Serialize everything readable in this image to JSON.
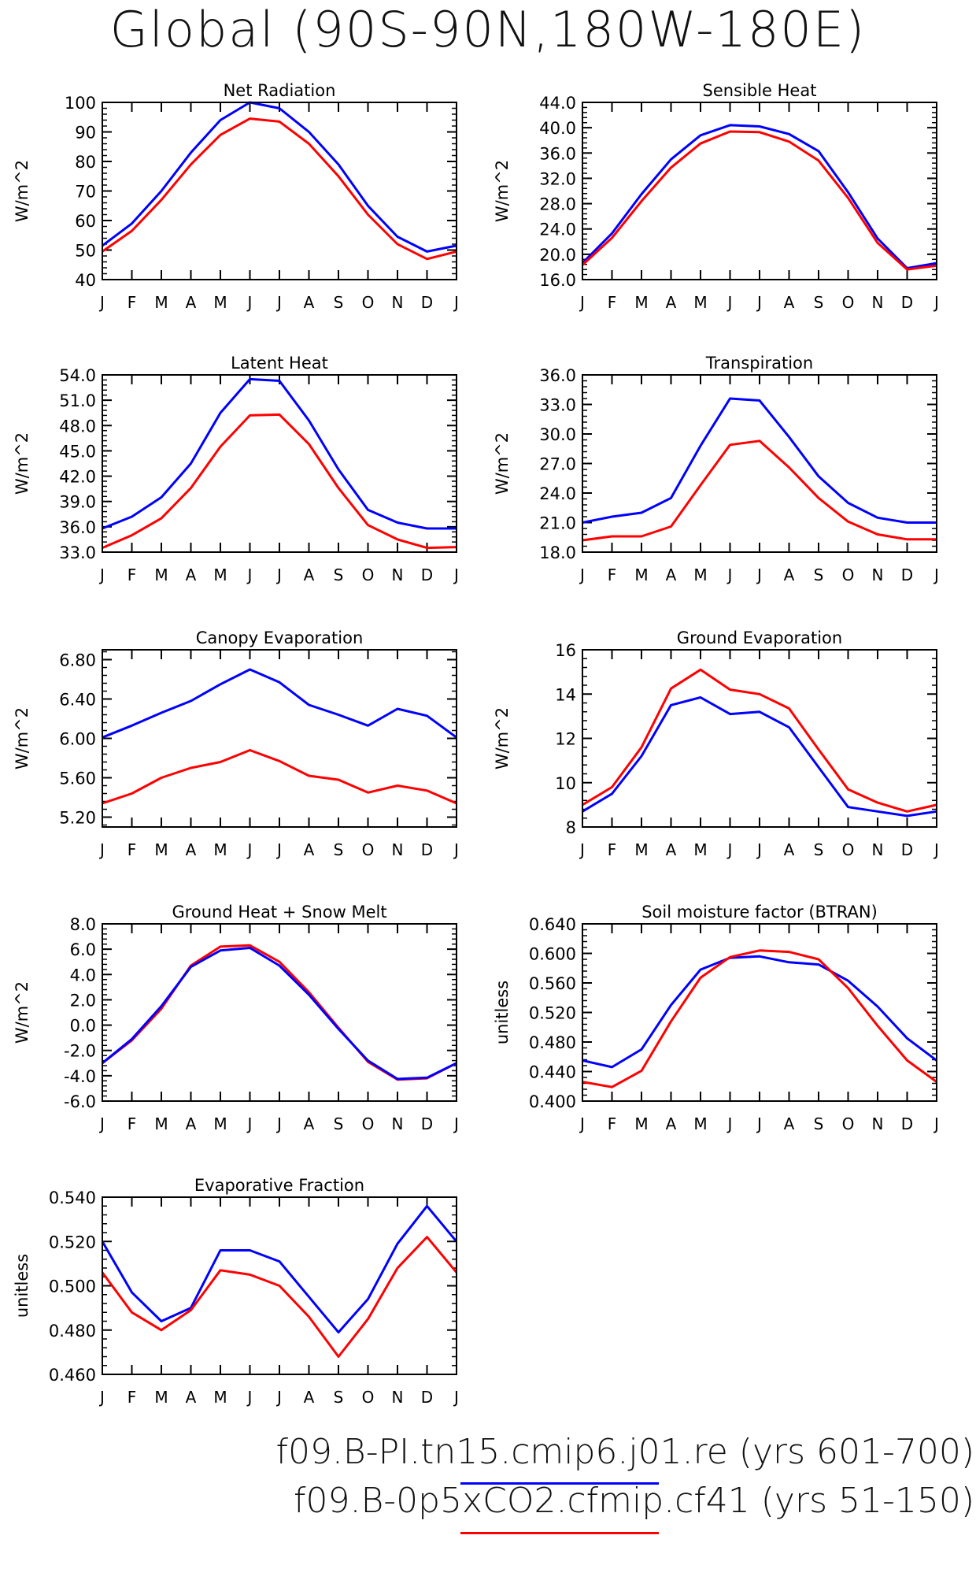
{
  "title": "Global (90S-90N,180W-180E)",
  "legend": [
    {
      "label": "f09.B-PI.tn15.cmip6.j01.re (yrs 601-700)",
      "color": "#0000ff"
    },
    {
      "label": "f09.B-0p5xCO2.cfmip.cf41 (yrs 51-150)",
      "color": "#ff0000"
    }
  ],
  "chart_data": [
    {
      "type": "line",
      "title": "Net Radiation",
      "ylabel": "W/m^2",
      "categories": [
        "J",
        "F",
        "M",
        "A",
        "M",
        "J",
        "J",
        "A",
        "S",
        "O",
        "N",
        "D",
        "J"
      ],
      "ylim": [
        40,
        100
      ],
      "yticks": [
        40,
        50,
        60,
        70,
        80,
        90,
        100
      ],
      "ytick_labels": [
        "40",
        "50",
        "60",
        "70",
        "80",
        "90",
        "100"
      ],
      "series": [
        {
          "color": "#0000ff",
          "values": [
            51.5,
            59,
            70,
            83,
            94,
            100,
            98,
            90,
            79,
            65,
            54.5,
            49.5,
            51.5
          ]
        },
        {
          "color": "#ff0000",
          "values": [
            49.5,
            56.5,
            67,
            79,
            89,
            94.5,
            93.5,
            86,
            75,
            62,
            52,
            47,
            49.5
          ]
        }
      ]
    },
    {
      "type": "line",
      "title": "Sensible Heat",
      "ylabel": "W/m^2",
      "categories": [
        "J",
        "F",
        "M",
        "A",
        "M",
        "J",
        "J",
        "A",
        "S",
        "O",
        "N",
        "D",
        "J"
      ],
      "ylim": [
        16,
        44
      ],
      "yticks": [
        16,
        20,
        24,
        28,
        32,
        36,
        40,
        44
      ],
      "ytick_labels": [
        "16.0",
        "20.0",
        "24.0",
        "28.0",
        "32.0",
        "36.0",
        "40.0",
        "44.0"
      ],
      "series": [
        {
          "color": "#0000ff",
          "values": [
            18.6,
            23.3,
            29.5,
            35.0,
            38.8,
            40.4,
            40.2,
            39.0,
            36.3,
            29.8,
            22.5,
            17.8,
            18.6
          ]
        },
        {
          "color": "#ff0000",
          "values": [
            18.3,
            22.6,
            28.4,
            33.7,
            37.5,
            39.4,
            39.3,
            37.8,
            34.8,
            28.9,
            21.8,
            17.6,
            18.2
          ]
        }
      ]
    },
    {
      "type": "line",
      "title": "Latent Heat",
      "ylabel": "W/m^2",
      "categories": [
        "J",
        "F",
        "M",
        "A",
        "M",
        "J",
        "J",
        "A",
        "S",
        "O",
        "N",
        "D",
        "J"
      ],
      "ylim": [
        33,
        54
      ],
      "yticks": [
        33,
        36,
        39,
        42,
        45,
        48,
        51,
        54
      ],
      "ytick_labels": [
        "33.0",
        "36.0",
        "39.0",
        "42.0",
        "45.0",
        "48.0",
        "51.0",
        "54.0"
      ],
      "series": [
        {
          "color": "#0000ff",
          "values": [
            35.8,
            37.2,
            39.5,
            43.5,
            49.5,
            53.5,
            53.3,
            48.6,
            42.8,
            38.0,
            36.5,
            35.8,
            35.8
          ]
        },
        {
          "color": "#ff0000",
          "values": [
            33.5,
            35.0,
            37.0,
            40.6,
            45.5,
            49.2,
            49.3,
            45.8,
            40.6,
            36.2,
            34.5,
            33.5,
            33.6
          ]
        }
      ]
    },
    {
      "type": "line",
      "title": "Transpiration",
      "ylabel": "W/m^2",
      "categories": [
        "J",
        "F",
        "M",
        "A",
        "M",
        "J",
        "J",
        "A",
        "S",
        "O",
        "N",
        "D",
        "J"
      ],
      "ylim": [
        18,
        36
      ],
      "yticks": [
        18,
        21,
        24,
        27,
        30,
        33,
        36
      ],
      "ytick_labels": [
        "18.0",
        "21.0",
        "24.0",
        "27.0",
        "30.0",
        "33.0",
        "36.0"
      ],
      "series": [
        {
          "color": "#0000ff",
          "values": [
            21.0,
            21.6,
            22.0,
            23.5,
            28.8,
            33.6,
            33.4,
            29.7,
            25.7,
            23.0,
            21.5,
            21.0,
            21.0
          ]
        },
        {
          "color": "#ff0000",
          "values": [
            19.2,
            19.6,
            19.6,
            20.6,
            24.8,
            28.9,
            29.3,
            26.6,
            23.5,
            21.1,
            19.8,
            19.3,
            19.3
          ]
        }
      ]
    },
    {
      "type": "line",
      "title": "Canopy Evaporation",
      "ylabel": "W/m^2",
      "categories": [
        "J",
        "F",
        "M",
        "A",
        "M",
        "J",
        "J",
        "A",
        "S",
        "O",
        "N",
        "D",
        "J"
      ],
      "ylim": [
        5.1,
        6.9
      ],
      "yticks": [
        5.2,
        5.6,
        6.0,
        6.4,
        6.8
      ],
      "ytick_labels": [
        "5.20",
        "5.60",
        "6.00",
        "6.40",
        "6.80"
      ],
      "series": [
        {
          "color": "#0000ff",
          "values": [
            6.01,
            6.13,
            6.26,
            6.38,
            6.55,
            6.7,
            6.57,
            6.34,
            6.24,
            6.13,
            6.3,
            6.23,
            6.01
          ]
        },
        {
          "color": "#ff0000",
          "values": [
            5.34,
            5.44,
            5.6,
            5.7,
            5.76,
            5.88,
            5.77,
            5.62,
            5.58,
            5.45,
            5.52,
            5.47,
            5.34
          ]
        }
      ]
    },
    {
      "type": "line",
      "title": "Ground Evaporation",
      "ylabel": "W/m^2",
      "categories": [
        "J",
        "F",
        "M",
        "A",
        "M",
        "J",
        "J",
        "A",
        "S",
        "O",
        "N",
        "D",
        "J"
      ],
      "ylim": [
        8,
        16
      ],
      "yticks": [
        8,
        10,
        12,
        14,
        16
      ],
      "ytick_labels": [
        "8",
        "10",
        "12",
        "14",
        "16"
      ],
      "series": [
        {
          "color": "#0000ff",
          "values": [
            8.7,
            9.5,
            11.2,
            13.5,
            13.85,
            13.1,
            13.2,
            12.5,
            10.7,
            8.9,
            8.7,
            8.5,
            8.7
          ]
        },
        {
          "color": "#ff0000",
          "values": [
            9.0,
            9.8,
            11.6,
            14.25,
            15.1,
            14.2,
            14.0,
            13.35,
            11.5,
            9.7,
            9.1,
            8.7,
            9.0
          ]
        }
      ]
    },
    {
      "type": "line",
      "title": "Ground Heat + Snow Melt",
      "ylabel": "W/m^2",
      "categories": [
        "J",
        "F",
        "M",
        "A",
        "M",
        "J",
        "J",
        "A",
        "S",
        "O",
        "N",
        "D",
        "J"
      ],
      "ylim": [
        -6,
        8
      ],
      "yticks": [
        -6,
        -4,
        -2,
        0,
        2,
        4,
        6,
        8
      ],
      "ytick_labels": [
        "-6.0",
        "-4.0",
        "-2.0",
        "0.0",
        "2.0",
        "4.0",
        "6.0",
        "8.0"
      ],
      "series": [
        {
          "color": "#ff0000",
          "values": [
            -3.0,
            -1.2,
            1.3,
            4.7,
            6.2,
            6.3,
            5.0,
            2.6,
            -0.2,
            -2.9,
            -4.3,
            -4.2,
            -3.0
          ]
        },
        {
          "color": "#0000ff",
          "values": [
            -3.0,
            -1.1,
            1.5,
            4.6,
            5.9,
            6.1,
            4.7,
            2.4,
            -0.3,
            -2.8,
            -4.25,
            -4.15,
            -3.0
          ]
        }
      ]
    },
    {
      "type": "line",
      "title": "Soil moisture factor (BTRAN)",
      "ylabel": "unitless",
      "categories": [
        "J",
        "F",
        "M",
        "A",
        "M",
        "J",
        "J",
        "A",
        "S",
        "O",
        "N",
        "D",
        "J"
      ],
      "ylim": [
        0.4,
        0.64
      ],
      "yticks": [
        0.4,
        0.44,
        0.48,
        0.52,
        0.56,
        0.6,
        0.64
      ],
      "ytick_labels": [
        "0.400",
        "0.440",
        "0.480",
        "0.520",
        "0.560",
        "0.600",
        "0.640"
      ],
      "series": [
        {
          "color": "#0000ff",
          "values": [
            0.455,
            0.446,
            0.47,
            0.53,
            0.578,
            0.594,
            0.596,
            0.588,
            0.585,
            0.563,
            0.528,
            0.485,
            0.455
          ]
        },
        {
          "color": "#ff0000",
          "values": [
            0.426,
            0.419,
            0.441,
            0.508,
            0.567,
            0.595,
            0.604,
            0.602,
            0.592,
            0.553,
            0.502,
            0.455,
            0.426
          ]
        }
      ]
    },
    {
      "type": "line",
      "title": "Evaporative Fraction",
      "ylabel": "unitless",
      "categories": [
        "J",
        "F",
        "M",
        "A",
        "M",
        "J",
        "J",
        "A",
        "S",
        "O",
        "N",
        "D",
        "J"
      ],
      "ylim": [
        0.46,
        0.54
      ],
      "yticks": [
        0.46,
        0.48,
        0.5,
        0.52,
        0.54
      ],
      "ytick_labels": [
        "0.460",
        "0.480",
        "0.500",
        "0.520",
        "0.540"
      ],
      "series": [
        {
          "color": "#0000ff",
          "values": [
            0.52,
            0.497,
            0.484,
            0.49,
            0.516,
            0.516,
            0.511,
            0.495,
            0.479,
            0.494,
            0.519,
            0.536,
            0.52
          ]
        },
        {
          "color": "#ff0000",
          "values": [
            0.506,
            0.488,
            0.48,
            0.489,
            0.507,
            0.505,
            0.5,
            0.486,
            0.468,
            0.485,
            0.508,
            0.522,
            0.506
          ]
        }
      ]
    }
  ]
}
